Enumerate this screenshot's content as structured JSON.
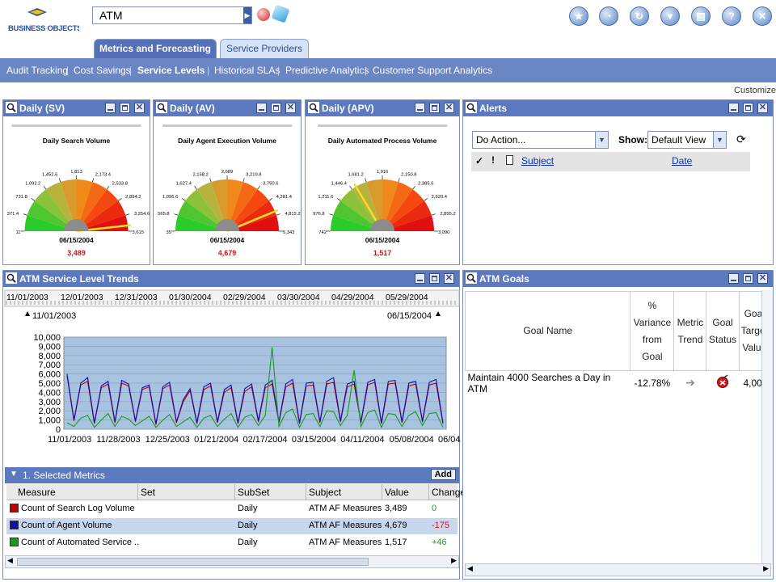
{
  "app": {
    "logo_text": "BUSINESS OBJECTS",
    "search_value": "ATM",
    "customize_label": "Customize",
    "toolbar_icons": [
      "new-icon",
      "history-icon",
      "refresh-icon",
      "filter-icon",
      "print-icon",
      "help-icon",
      "close-icon"
    ]
  },
  "tabs": [
    {
      "label": "Metrics and Forecasting",
      "active": true
    },
    {
      "label": "Service Providers",
      "active": false
    }
  ],
  "subnav": [
    "Audit Tracking",
    "Cost Savings",
    "Service Levels",
    "Historical SLAs",
    "Predictive Analytics",
    "Customer Support Analytics"
  ],
  "gauges": [
    {
      "panel_title": "Daily (SV)",
      "chart_title": "Daily Search Volume",
      "date": "06/15/2004",
      "value": "3,489",
      "ticks": [
        "11",
        "371.4",
        "731.8",
        "1,092.2",
        "1,452.6",
        "1,813",
        "2,173.4",
        "2,533.8",
        "2,894.2",
        "3,254.6",
        "3,615"
      ]
    },
    {
      "panel_title": "Daily (AV)",
      "chart_title": "Daily Agent Execution Volume",
      "date": "06/15/2004",
      "value": "4,679",
      "ticks": [
        "35",
        "565.8",
        "1,096.6",
        "1,627.4",
        "2,158.2",
        "2,689",
        "3,219.8",
        "3,750.6",
        "4,281.4",
        "4,812.2",
        "5,343"
      ]
    },
    {
      "panel_title": "Daily (APV)",
      "chart_title": "Daily Automated Process Volume",
      "date": "06/15/2004",
      "value": "1,517",
      "ticks": [
        "742",
        "976.8",
        "1,211.6",
        "1,446.4",
        "1,681.2",
        "1,916",
        "2,150.8",
        "2,385.6",
        "2,620.4",
        "2,855.2",
        "3,090"
      ]
    }
  ],
  "alerts": {
    "panel_title": "Alerts",
    "action_value": "Do Action...",
    "show_label": "Show:",
    "view_value": "Default View",
    "col_subject": "Subject",
    "col_date": "Date"
  },
  "trends": {
    "panel_title": "ATM Service Level Trends",
    "ruler_dates": [
      "11/01/2003",
      "12/01/2003",
      "12/31/2003",
      "01/30/2004",
      "02/29/2004",
      "03/30/2004",
      "04/29/2004",
      "05/29/2004"
    ],
    "range_start": "11/01/2003",
    "range_end": "06/15/2004",
    "section_title": "1. Selected Metrics",
    "add_label": "Add",
    "columns": [
      "Measure",
      "Set",
      "SubSet",
      "Subject",
      "Value",
      "Change"
    ],
    "rows": [
      {
        "measure": "Count of Search Log Volume",
        "set": "",
        "subset": "Daily",
        "subject": "ATM AF Measures",
        "value": "3,489",
        "change": "0",
        "color": "#c00000"
      },
      {
        "measure": "Count of Agent Volume",
        "set": "",
        "subset": "Daily",
        "subject": "ATM AF Measures",
        "value": "4,679",
        "change": "-175",
        "color": "#1010b0"
      },
      {
        "measure": "Count of Automated Service ..",
        "set": "",
        "subset": "Daily",
        "subject": "ATM AF Measures",
        "value": "1,517",
        "change": "+46",
        "color": "#1a9a1a"
      }
    ]
  },
  "chart_data": {
    "type": "line",
    "title": "",
    "xlabel": "",
    "ylabel": "",
    "ylim": [
      0,
      10000
    ],
    "yticks": [
      "0",
      "1,000",
      "2,000",
      "3,000",
      "4,000",
      "5,000",
      "6,000",
      "7,000",
      "8,000",
      "9,000",
      "10,000"
    ],
    "xticks": [
      "11/01/2003",
      "11/28/2003",
      "12/25/2003",
      "01/21/2004",
      "02/17/2004",
      "03/15/2004",
      "04/11/2004",
      "05/08/2004",
      "06/04/2004"
    ],
    "x_start": "11/01/2003",
    "x_end": "06/15/2004",
    "grid": true,
    "series": [
      {
        "color": "#c00000",
        "values": [
          5800,
          900,
          4800,
          5200,
          600,
          4500,
          4900,
          700,
          5000,
          4700,
          800,
          4300,
          4600,
          500,
          4400,
          4800,
          700,
          3000,
          4200,
          600,
          4300,
          4700,
          700,
          4000,
          4500,
          600,
          4100,
          4600,
          800,
          4500,
          4900,
          700,
          4600,
          5000,
          600,
          4700,
          4800,
          700,
          4900,
          5100,
          800,
          4600,
          4900,
          700,
          4800,
          5100,
          600,
          4900,
          5000,
          700,
          4700,
          4900,
          800,
          4800,
          5000,
          600
        ]
      },
      {
        "color": "#1010b0",
        "values": [
          6000,
          1000,
          5000,
          5600,
          700,
          4700,
          5200,
          800,
          5300,
          4900,
          900,
          4500,
          4800,
          600,
          4600,
          5100,
          800,
          3200,
          4400,
          700,
          4600,
          5000,
          800,
          4300,
          4800,
          700,
          4400,
          4900,
          900,
          4800,
          5300,
          800,
          4900,
          5400,
          700,
          5000,
          5100,
          800,
          5200,
          5600,
          900,
          4900,
          5200,
          800,
          5100,
          5400,
          700,
          5200,
          5300,
          800,
          5000,
          5200,
          900,
          5100,
          5400,
          700
        ]
      },
      {
        "color": "#1a9a1a",
        "values": [
          700,
          300,
          1200,
          1500,
          200,
          1000,
          1700,
          300,
          1400,
          1100,
          400,
          900,
          1400,
          200,
          1000,
          1600,
          300,
          800,
          1300,
          200,
          1200,
          1500,
          300,
          1100,
          1700,
          200,
          1300,
          1600,
          400,
          1500,
          8900,
          300,
          1800,
          2200,
          200,
          1600,
          1700,
          300,
          2000,
          1900,
          400,
          1500,
          6400,
          300,
          1800,
          2100,
          200,
          1700,
          1600,
          300,
          1500,
          1900,
          400,
          1700,
          1800,
          200
        ]
      }
    ]
  },
  "goals": {
    "panel_title": "ATM Goals",
    "columns": [
      "Goal Name",
      "% Variance from Goal",
      "Metric Trend",
      "Goal Status",
      "Goal Target Value"
    ],
    "row": {
      "name": "Maintain 4000 Searches a Day in ATM",
      "variance": "-12.78%",
      "target": "4,000"
    }
  }
}
